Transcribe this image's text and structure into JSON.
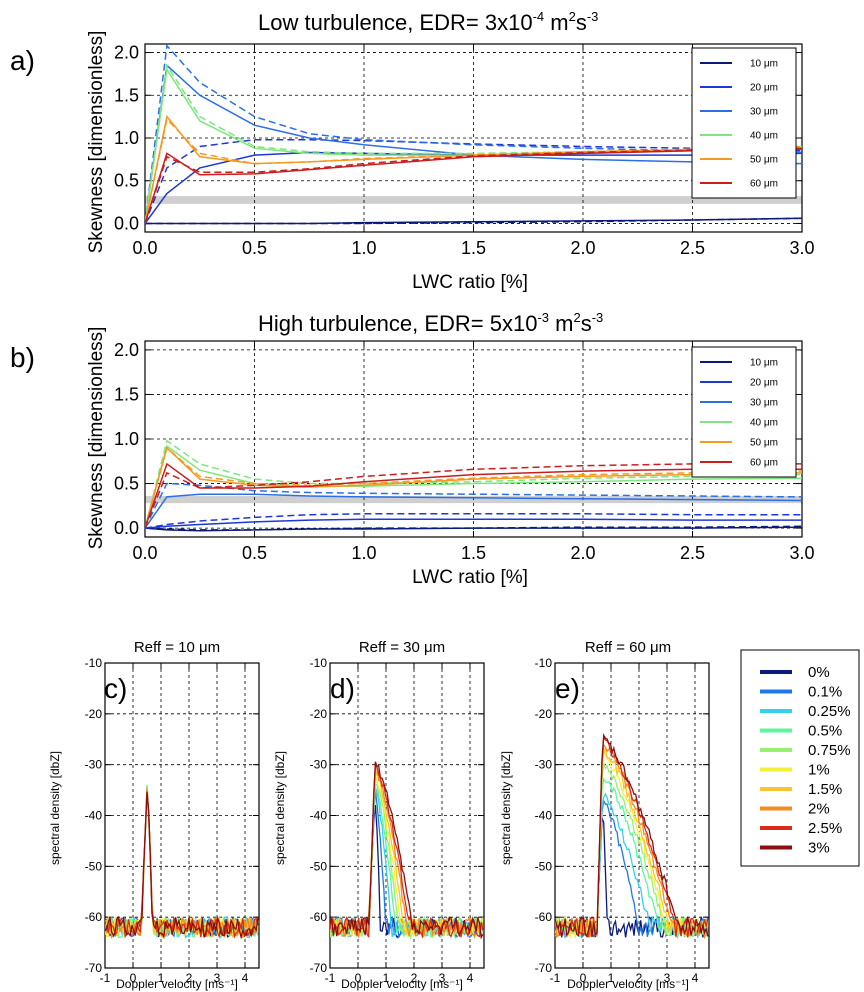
{
  "panels_top": [
    {
      "letter": "a)",
      "title_main": "Low turbulence, EDR= 3x10",
      "title_exp": "-4",
      "title_unit_a": " m",
      "title_unit_exp_a": "2",
      "title_unit_b": "s",
      "title_unit_exp_b": "-3",
      "xlabel": "LWC ratio [%]",
      "ylabel": "Skewness [dimensionless]"
    },
    {
      "letter": "b)",
      "title_main": "High turbulence, EDR= 5x10",
      "title_exp": "-3",
      "title_unit_a": " m",
      "title_unit_exp_a": "2",
      "title_unit_b": "s",
      "title_unit_exp_b": "-3",
      "xlabel": "LWC ratio [%]",
      "ylabel": "Skewness [dimensionless]"
    }
  ],
  "panels_bottom": [
    {
      "letter": "c)",
      "title": "Reff = 10 μm",
      "xlabel": "Doppler velocity [ms⁻¹]",
      "ylabel": "spectral density [dbZ]"
    },
    {
      "letter": "d)",
      "title": "Reff = 30 μm",
      "xlabel": "Doppler velocity [ms⁻¹]",
      "ylabel": "spectral density [dbZ]"
    },
    {
      "letter": "e)",
      "title": "Reff = 60 μm",
      "xlabel": "Doppler velocity [ms⁻¹]",
      "ylabel": "spectral density [dbZ]"
    }
  ],
  "chart_data": [
    {
      "type": "line",
      "title": "Low turbulence, EDR= 3x10-4 m2s-3",
      "xlabel": "LWC ratio [%]",
      "ylabel": "Skewness [dimensionless]",
      "xlim": [
        0,
        3
      ],
      "ylim": [
        -0.1,
        2.1
      ],
      "xticks": [
        "0.0",
        "0.5",
        "1.0",
        "1.5",
        "2.0",
        "2.5",
        "3.0"
      ],
      "yticks": [
        "0.0",
        "0.5",
        "1.0",
        "1.5",
        "2.0"
      ],
      "grid": true,
      "legend_position": "top-right",
      "shaded_band": [
        0.23,
        0.32
      ],
      "x": [
        0,
        0.1,
        0.25,
        0.5,
        0.75,
        1,
        1.5,
        2,
        2.5,
        3
      ],
      "series": [
        {
          "name": "10 μm",
          "color": "#0a1a7a",
          "solid": [
            0,
            0.0,
            0.0,
            0.0,
            0.0,
            0.01,
            0.02,
            0.03,
            0.04,
            0.06
          ],
          "dashed": [
            0,
            0.0,
            0.0,
            0.0,
            0.0,
            0.0,
            0.01,
            0.02,
            0.04,
            0.06
          ]
        },
        {
          "name": "20 μm",
          "color": "#1e37d6",
          "solid": [
            0,
            0.35,
            0.65,
            0.8,
            0.83,
            0.82,
            0.8,
            0.8,
            0.8,
            0.82
          ],
          "dashed": [
            0,
            0.65,
            0.9,
            0.98,
            0.98,
            0.97,
            0.93,
            0.9,
            0.88,
            0.85
          ]
        },
        {
          "name": "30 μm",
          "color": "#2a6fe8",
          "solid": [
            0,
            1.85,
            1.5,
            1.15,
            1.0,
            0.92,
            0.8,
            0.75,
            0.72,
            0.7
          ],
          "dashed": [
            0,
            2.08,
            1.65,
            1.25,
            1.05,
            0.98,
            0.92,
            0.88,
            0.85,
            0.83
          ]
        },
        {
          "name": "40 μm",
          "color": "#7ee67e",
          "solid": [
            0,
            1.8,
            1.2,
            0.88,
            0.82,
            0.8,
            0.8,
            0.82,
            0.85,
            0.88
          ],
          "dashed": [
            0,
            1.85,
            1.25,
            0.9,
            0.84,
            0.82,
            0.82,
            0.84,
            0.86,
            0.9
          ]
        },
        {
          "name": "50 μm",
          "color": "#f59a20",
          "solid": [
            0,
            1.25,
            0.78,
            0.7,
            0.72,
            0.75,
            0.8,
            0.84,
            0.86,
            0.88
          ],
          "dashed": [
            0,
            1.22,
            0.82,
            0.7,
            0.72,
            0.76,
            0.8,
            0.84,
            0.87,
            0.9
          ]
        },
        {
          "name": "60 μm",
          "color": "#c81e1e",
          "solid": [
            0,
            0.82,
            0.57,
            0.58,
            0.63,
            0.68,
            0.78,
            0.82,
            0.85,
            0.87
          ],
          "dashed": [
            0,
            0.78,
            0.6,
            0.6,
            0.64,
            0.7,
            0.79,
            0.83,
            0.86,
            0.88
          ]
        }
      ]
    },
    {
      "type": "line",
      "title": "High turbulence, EDR= 5x10-3 m2s-3",
      "xlabel": "LWC ratio [%]",
      "ylabel": "Skewness [dimensionless]",
      "xlim": [
        0,
        3
      ],
      "ylim": [
        -0.1,
        2.1
      ],
      "xticks": [
        "0.0",
        "0.5",
        "1.0",
        "1.5",
        "2.0",
        "2.5",
        "3.0"
      ],
      "yticks": [
        "0.0",
        "0.5",
        "1.0",
        "1.5",
        "2.0"
      ],
      "grid": true,
      "legend_position": "top-right",
      "shaded_band": [
        0.28,
        0.36
      ],
      "x": [
        0,
        0.1,
        0.25,
        0.5,
        0.75,
        1,
        1.5,
        2,
        2.5,
        3
      ],
      "series": [
        {
          "name": "10 μm",
          "color": "#0a1a7a",
          "solid": [
            0,
            -0.02,
            -0.03,
            -0.02,
            -0.01,
            -0.01,
            0.0,
            0.0,
            0.0,
            0.01
          ],
          "dashed": [
            0,
            -0.01,
            -0.02,
            -0.02,
            -0.01,
            0.0,
            0.0,
            0.01,
            0.01,
            0.02
          ]
        },
        {
          "name": "20 μm",
          "color": "#1e37d6",
          "solid": [
            0,
            0.02,
            0.04,
            0.07,
            0.09,
            0.1,
            0.1,
            0.1,
            0.09,
            0.09
          ],
          "dashed": [
            0,
            0.04,
            0.08,
            0.12,
            0.15,
            0.16,
            0.16,
            0.16,
            0.15,
            0.15
          ]
        },
        {
          "name": "30 μm",
          "color": "#2a6fe8",
          "solid": [
            0,
            0.35,
            0.38,
            0.38,
            0.36,
            0.35,
            0.34,
            0.33,
            0.32,
            0.31
          ],
          "dashed": [
            0,
            0.5,
            0.48,
            0.42,
            0.4,
            0.39,
            0.38,
            0.37,
            0.36,
            0.35
          ]
        },
        {
          "name": "40 μm",
          "color": "#7ee67e",
          "solid": [
            0,
            0.92,
            0.65,
            0.5,
            0.47,
            0.47,
            0.5,
            0.52,
            0.55,
            0.56
          ],
          "dashed": [
            0,
            0.98,
            0.72,
            0.55,
            0.5,
            0.5,
            0.52,
            0.56,
            0.58,
            0.6
          ]
        },
        {
          "name": "50 μm",
          "color": "#f59a20",
          "solid": [
            0,
            0.9,
            0.55,
            0.48,
            0.46,
            0.48,
            0.55,
            0.58,
            0.6,
            0.62
          ],
          "dashed": [
            0,
            0.9,
            0.58,
            0.5,
            0.48,
            0.5,
            0.56,
            0.6,
            0.62,
            0.64
          ]
        },
        {
          "name": "60 μm",
          "color": "#c81e1e",
          "solid": [
            0,
            0.72,
            0.45,
            0.45,
            0.47,
            0.52,
            0.6,
            0.64,
            0.66,
            0.66
          ],
          "dashed": [
            0,
            0.62,
            0.45,
            0.48,
            0.52,
            0.58,
            0.66,
            0.7,
            0.72,
            0.72
          ]
        }
      ]
    },
    {
      "type": "line",
      "title": "Reff = 10 μm",
      "xlabel": "Doppler velocity [ms⁻¹]",
      "ylabel": "spectral density [dbZ]",
      "xlim": [
        -1,
        4.5
      ],
      "ylim": [
        -70,
        -10
      ],
      "xticks": [
        "-1",
        "0",
        "1",
        "2",
        "3",
        "4"
      ],
      "yticks": [
        "-70",
        "-60",
        "-50",
        "-40",
        "-30",
        "-20",
        "-10"
      ],
      "grid": true,
      "peak_center": 0.5,
      "peak_width": 0.15,
      "noise_floor": -62,
      "peak_values": [
        -35,
        -35,
        -35,
        -35,
        -35,
        -35,
        -35,
        -35,
        -35,
        -35
      ]
    },
    {
      "type": "line",
      "title": "Reff = 30 μm",
      "xlabel": "Doppler velocity [ms⁻¹]",
      "ylabel": "spectral density [dbZ]",
      "xlim": [
        -1,
        4.5
      ],
      "ylim": [
        -70,
        -10
      ],
      "xticks": [
        "-1",
        "0",
        "1",
        "2",
        "3",
        "4"
      ],
      "yticks": [
        "-70",
        "-60",
        "-50",
        "-40",
        "-30",
        "-20",
        "-10"
      ],
      "grid": true,
      "peak_center": 0.6,
      "noise_floor": -62,
      "peak_values": [
        -36,
        -35,
        -34,
        -33,
        -32.5,
        -32,
        -31,
        -30.5,
        -30,
        -29.5
      ],
      "tail_end": [
        0.8,
        1.0,
        1.2,
        1.35,
        1.45,
        1.55,
        1.65,
        1.75,
        1.85,
        1.95
      ]
    },
    {
      "type": "line",
      "title": "Reff = 60 μm",
      "xlabel": "Doppler velocity [ms⁻¹]",
      "ylabel": "spectral density [dbZ]",
      "xlim": [
        -1,
        4.5
      ],
      "ylim": [
        -70,
        -10
      ],
      "xticks": [
        "-1",
        "0",
        "1",
        "2",
        "3",
        "4"
      ],
      "yticks": [
        "-70",
        "-60",
        "-50",
        "-40",
        "-30",
        "-20",
        "-10"
      ],
      "grid": true,
      "peak_center": 0.7,
      "noise_floor": -62,
      "peak_values": [
        -38,
        -37,
        -36,
        -32,
        -30,
        -28,
        -27,
        -26,
        -25.5,
        -25
      ],
      "tail_end": [
        0.85,
        2.0,
        2.4,
        2.7,
        2.9,
        3.0,
        3.1,
        3.2,
        3.3,
        3.4
      ]
    }
  ],
  "legend_lwc": {
    "labels": [
      "0%",
      "0.1%",
      "0.25%",
      "0.5%",
      "0.75%",
      "1%",
      "1.5%",
      "2%",
      "2.5%",
      "3%"
    ],
    "colors": [
      "#0a1a7a",
      "#1f78e8",
      "#35d0f0",
      "#5ff5a0",
      "#98f070",
      "#f3f03a",
      "#f8c531",
      "#f48a22",
      "#dc2a1a",
      "#8b0f0f"
    ]
  }
}
